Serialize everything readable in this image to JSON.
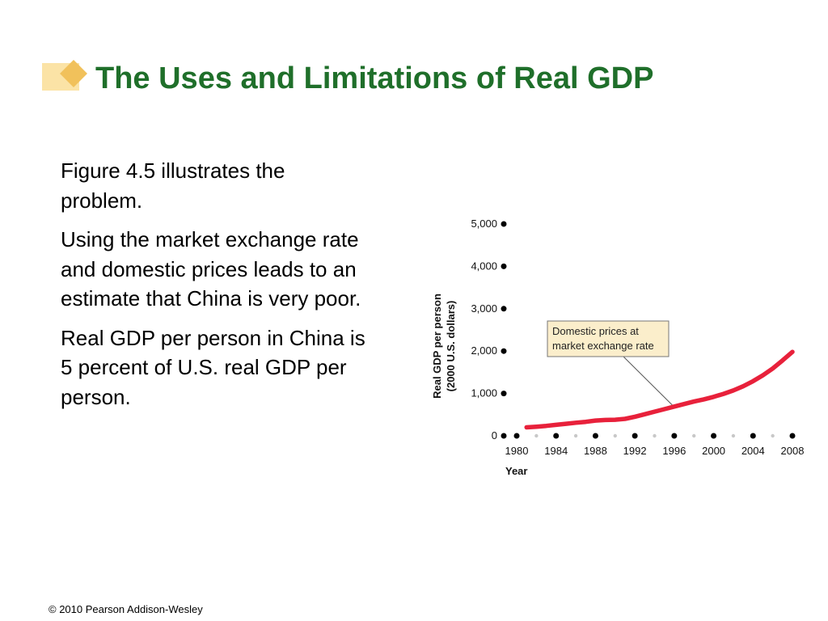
{
  "slide": {
    "title": "The Uses and Limitations of Real GDP",
    "bullets": [
      "Figure 4.5 illustrates the problem.",
      "Using the market exchange rate and domestic prices leads to an estimate that China is very poor.",
      "Real GDP per person in China is 5 percent of U.S. real GDP per person."
    ],
    "footer": "© 2010 Pearson Addison-Wesley"
  },
  "colors": {
    "title": "#1f6f2a",
    "series_line": "#e8213b",
    "deco_rect": "#fbe3a6",
    "deco_diamond": "#f1c15b",
    "callout_fill": "#fbeecb"
  },
  "chart_data": {
    "type": "line",
    "title": "",
    "xlabel": "Year",
    "ylabel": "Real GDP per person (2000 U.S. dollars)",
    "xlim": [
      1980,
      2008
    ],
    "ylim": [
      0,
      5000
    ],
    "x_ticks": [
      1980,
      1984,
      1988,
      1992,
      1996,
      2000,
      2004,
      2008
    ],
    "x_tick_labels": [
      "1980",
      "1984",
      "1988",
      "1992",
      "1996",
      "2000",
      "2004",
      "2008"
    ],
    "y_ticks": [
      0,
      1000,
      2000,
      3000,
      4000,
      5000
    ],
    "y_tick_labels": [
      "0",
      "1,000",
      "2,000",
      "3,000",
      "4,000",
      "5,000"
    ],
    "grid": false,
    "series": [
      {
        "name": "Domestic prices at market exchange rate",
        "x": [
          1981,
          1982,
          1983,
          1984,
          1985,
          1986,
          1987,
          1988,
          1989,
          1990,
          1991,
          1992,
          1993,
          1994,
          1995,
          1996,
          1997,
          1998,
          1999,
          2000,
          2001,
          2002,
          2003,
          2004,
          2005,
          2006,
          2007,
          2008
        ],
        "y": [
          200,
          215,
          235,
          260,
          285,
          310,
          330,
          360,
          375,
          380,
          400,
          450,
          510,
          570,
          630,
          690,
          750,
          810,
          860,
          920,
          990,
          1070,
          1170,
          1290,
          1430,
          1590,
          1780,
          1980
        ]
      }
    ],
    "annotations": [
      {
        "text": "Domestic prices at market exchange rate",
        "points_to_x": 1996,
        "points_to_y": 680
      }
    ]
  }
}
